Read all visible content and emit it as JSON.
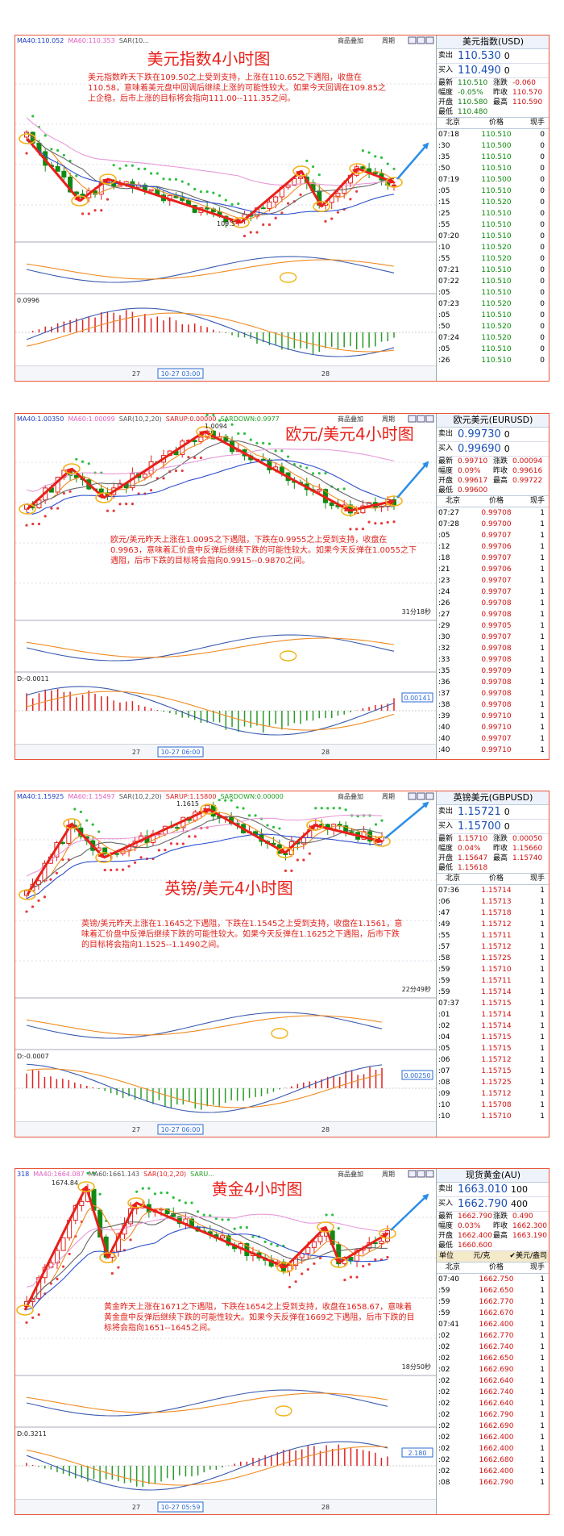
{
  "panels": [
    {
      "chart": {
        "title": "美元指数4小时图",
        "indicators": [
          "MA40:110.052",
          "MA60:110.353",
          "SAR(10..."
        ],
        "toolbar": [
          "商品叠加",
          "周期"
        ],
        "annotation": "美元指数昨天下跌在109.50之上受到支持，上涨在110.65之下遇阻，收盘在110.58，意味着美元盘中回调后继续上涨的可能性较大。如果今天回调在109.85之上企稳，后市上涨的目标将会指向111.00--111.35之间。",
        "price_label": "109.5",
        "macd_label": "0.0996",
        "x_labels": [
          "27",
          "10-27 03:00",
          "28"
        ]
      },
      "quote": {
        "title": "美元指数(USD)",
        "sell": [
          "卖出",
          "110.530",
          "0"
        ],
        "buy": [
          "买入",
          "110.490",
          "0"
        ],
        "stats": [
          [
            "最新",
            "110.510",
            "涨跌",
            "-0.060"
          ],
          [
            "幅度",
            "-0.05%",
            "昨收",
            "110.570"
          ],
          [
            "开盘",
            "110.580",
            "最高",
            "110.590"
          ],
          [
            "最低",
            "110.480"
          ]
        ],
        "header": [
          "北京",
          "价格",
          "现手"
        ],
        "ticks": [
          [
            "07:18",
            "110.510",
            "0"
          ],
          [
            ":30",
            "110.500",
            "0"
          ],
          [
            ":35",
            "110.510",
            "0"
          ],
          [
            ":50",
            "110.510",
            "0"
          ],
          [
            "07:19",
            "110.500",
            "0"
          ],
          [
            ":05",
            "110.510",
            "0"
          ],
          [
            ":15",
            "110.520",
            "0"
          ],
          [
            ":25",
            "110.510",
            "0"
          ],
          [
            ":55",
            "110.510",
            "0"
          ],
          [
            "07:20",
            "110.510",
            "0"
          ],
          [
            ":10",
            "110.520",
            "0"
          ],
          [
            ":55",
            "110.520",
            "0"
          ],
          [
            "07:21",
            "110.510",
            "0"
          ],
          [
            "07:22",
            "110.510",
            "0"
          ],
          [
            ":05",
            "110.510",
            "0"
          ],
          [
            "07:23",
            "110.520",
            "0"
          ],
          [
            ":05",
            "110.510",
            "0"
          ],
          [
            ":50",
            "110.520",
            "0"
          ],
          [
            "07:24",
            "110.520",
            "0"
          ],
          [
            ":05",
            "110.510",
            "0"
          ],
          [
            ":26",
            "110.510",
            "0"
          ]
        ]
      }
    },
    {
      "chart": {
        "title": "欧元/美元4小时图",
        "indicators": [
          "MA40:1.00350",
          "MA60:1.00099",
          "SAR(10,2,20)",
          "SARUP:0.00000",
          "SARDOWN:0.9977"
        ],
        "toolbar": [
          "商品叠加",
          "周期"
        ],
        "annotation": "欧元/美元昨天上涨在1.0095之下遇阻，下跌在0.9955之上受到支持，收盘在0.9963，意味着汇价盘中反弹后继续下跌的可能性较大。如果今天反弹在1.0055之下遇阻，后市下跌的目标将会指向0.9915--0.9870之间。",
        "price_label": "1.0094",
        "countdown": "31分18秒",
        "macd_label": "D:-0.0011",
        "macd_box": "0.00141",
        "x_labels": [
          "27",
          "10-27 06:00",
          "28"
        ]
      },
      "quote": {
        "title": "欧元美元(EURUSD)",
        "sell": [
          "卖出",
          "0.99730",
          "0"
        ],
        "buy": [
          "买入",
          "0.99690",
          "0"
        ],
        "stats": [
          [
            "最新",
            "0.99710",
            "涨跌",
            "0.00094"
          ],
          [
            "幅度",
            "0.09%",
            "昨收",
            "0.99616"
          ],
          [
            "开盘",
            "0.99617",
            "最高",
            "0.99722"
          ],
          [
            "最低",
            "0.99600"
          ]
        ],
        "header": [
          "北京",
          "价格",
          "现手"
        ],
        "ticks": [
          [
            "07:27",
            "0.99708",
            "1"
          ],
          [
            "07:28",
            "0.99700",
            "1"
          ],
          [
            ":05",
            "0.99707",
            "1"
          ],
          [
            ":12",
            "0.99706",
            "1"
          ],
          [
            ":18",
            "0.99707",
            "1"
          ],
          [
            ":21",
            "0.99706",
            "1"
          ],
          [
            ":23",
            "0.99707",
            "1"
          ],
          [
            ":24",
            "0.99707",
            "1"
          ],
          [
            ":26",
            "0.99708",
            "1"
          ],
          [
            ":27",
            "0.99708",
            "1"
          ],
          [
            ":29",
            "0.99705",
            "1"
          ],
          [
            ":30",
            "0.99707",
            "1"
          ],
          [
            ":32",
            "0.99708",
            "1"
          ],
          [
            ":33",
            "0.99708",
            "1"
          ],
          [
            ":35",
            "0.99709",
            "1"
          ],
          [
            ":36",
            "0.99708",
            "1"
          ],
          [
            ":37",
            "0.99708",
            "1"
          ],
          [
            ":38",
            "0.99708",
            "1"
          ],
          [
            ":39",
            "0.99710",
            "1"
          ],
          [
            ":40",
            "0.99710",
            "1"
          ],
          [
            ":40",
            "0.99707",
            "1"
          ],
          [
            ":40",
            "0.99710",
            "1"
          ]
        ]
      }
    },
    {
      "chart": {
        "title": "英镑/美元4小时图",
        "indicators": [
          "MA40:1.15925",
          "MA60:1.15497",
          "SAR(10,2,20)",
          "SARUP:1.15800",
          "SARDOWN:0.00000"
        ],
        "toolbar": [
          "商品叠加",
          "周期"
        ],
        "annotation": "英镑/美元昨天上涨在1.1645之下遇阻，下跌在1.1545之上受到支持，收盘在1.1561，意味着汇价盘中反弹后继续下跌的可能性较大。如果今天反弹在1.1625之下遇阻，后市下跌的目标将会指向1.1525--1.1490之间。",
        "price_label": "1.1615",
        "countdown": "22分49秒",
        "macd_label": "D:-0.0007",
        "macd_box": "0.00250",
        "x_labels": [
          "27",
          "10-27 06:00",
          "28"
        ]
      },
      "quote": {
        "title": "英镑美元(GBPUSD)",
        "sell": [
          "卖出",
          "1.15721",
          "0"
        ],
        "buy": [
          "买入",
          "1.15700",
          "0"
        ],
        "stats": [
          [
            "最新",
            "1.15710",
            "涨跌",
            "0.00050"
          ],
          [
            "幅度",
            "0.04%",
            "昨收",
            "1.15660"
          ],
          [
            "开盘",
            "1.15647",
            "最高",
            "1.15740"
          ],
          [
            "最低",
            "1.15618"
          ]
        ],
        "header": [
          "北京",
          "价格",
          "现手"
        ],
        "ticks": [
          [
            "07:36",
            "1.15714",
            "1"
          ],
          [
            ":06",
            "1.15713",
            "1"
          ],
          [
            ":47",
            "1.15718",
            "1"
          ],
          [
            ":49",
            "1.15712",
            "1"
          ],
          [
            ":55",
            "1.15711",
            "1"
          ],
          [
            ":57",
            "1.15712",
            "1"
          ],
          [
            ":58",
            "1.15725",
            "1"
          ],
          [
            ":59",
            "1.15710",
            "1"
          ],
          [
            ":59",
            "1.15711",
            "1"
          ],
          [
            ":59",
            "1.15714",
            "1"
          ],
          [
            "07:37",
            "1.15715",
            "1"
          ],
          [
            ":01",
            "1.15714",
            "1"
          ],
          [
            ":02",
            "1.15714",
            "1"
          ],
          [
            ":04",
            "1.15715",
            "1"
          ],
          [
            ":05",
            "1.15715",
            "1"
          ],
          [
            ":06",
            "1.15712",
            "1"
          ],
          [
            ":07",
            "1.15715",
            "1"
          ],
          [
            ":08",
            "1.15725",
            "1"
          ],
          [
            ":09",
            "1.15712",
            "1"
          ],
          [
            ":10",
            "1.15708",
            "1"
          ],
          [
            ":10",
            "1.15710",
            "1"
          ]
        ]
      }
    },
    {
      "chart": {
        "title": "黄金4小时图",
        "indicators": [
          "318",
          "MA40:1664.087",
          "MA60:1661.143",
          "SAR(10,2,20)",
          "SARU..."
        ],
        "toolbar": [
          "商品叠加",
          "周期"
        ],
        "annotation": "黄金昨天上涨在1671之下遇阻，下跌在1654之上受到支持，收盘在1658.67，意味着黄金盘中反弹后继续下跌的可能性较大。如果今天反弹在1669之下遇阻，后市下跌的目标将会指向1651--1645之间。",
        "price_label": "1674.84",
        "countdown": "18分50秒",
        "macd_label": "D:0.3211",
        "macd_box": "2.180",
        "x_labels": [
          "27",
          "10-27 05:59",
          "28"
        ]
      },
      "quote": {
        "title": "现货黄金(AU)",
        "sell": [
          "卖出",
          "1663.010",
          "100"
        ],
        "buy": [
          "买入",
          "1662.790",
          "400"
        ],
        "stats": [
          [
            "最新",
            "1662.790",
            "涨跌",
            "0.490"
          ],
          [
            "幅度",
            "0.03%",
            "昨收",
            "1662.300"
          ],
          [
            "开盘",
            "1662.400",
            "最高",
            "1663.190"
          ],
          [
            "最低",
            "1660.600"
          ]
        ],
        "extra": [
          "单位",
          "元/克",
          "✔美元/盎司"
        ],
        "header": [
          "北京",
          "价格",
          "现手"
        ],
        "ticks": [
          [
            "07:40",
            "1662.750",
            "1"
          ],
          [
            ":59",
            "1662.650",
            "1"
          ],
          [
            ":59",
            "1662.770",
            "1"
          ],
          [
            ":59",
            "1662.670",
            "1"
          ],
          [
            "07:41",
            "1662.400",
            "1"
          ],
          [
            ":02",
            "1662.770",
            "1"
          ],
          [
            ":02",
            "1662.740",
            "1"
          ],
          [
            ":02",
            "1662.650",
            "1"
          ],
          [
            ":02",
            "1662.690",
            "1"
          ],
          [
            ":02",
            "1662.640",
            "1"
          ],
          [
            ":02",
            "1662.740",
            "1"
          ],
          [
            ":02",
            "1662.640",
            "1"
          ],
          [
            ":02",
            "1662.790",
            "1"
          ],
          [
            ":02",
            "1662.690",
            "1"
          ],
          [
            ":02",
            "1662.400",
            "1"
          ],
          [
            ":02",
            "1662.400",
            "1"
          ],
          [
            ":02",
            "1662.680",
            "1"
          ],
          [
            ":02",
            "1662.400",
            "1"
          ],
          [
            ":08",
            "1662.790",
            "1"
          ]
        ]
      }
    }
  ]
}
